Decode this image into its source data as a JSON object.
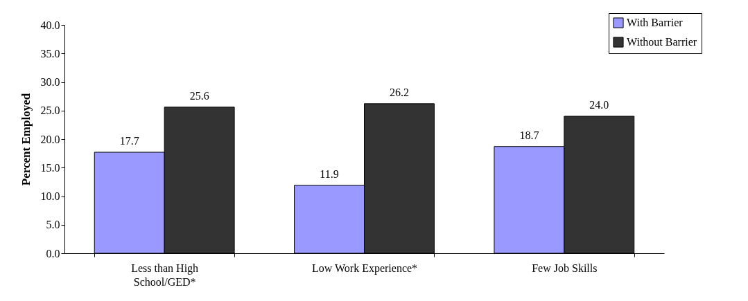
{
  "chart_data": {
    "type": "bar",
    "ylabel": "Percent Employed",
    "categories": [
      "Less than High School/GED*",
      "Low Work Experience*",
      "Few Job Skills"
    ],
    "series": [
      {
        "name": "With Barrier",
        "color": "#9999ff",
        "values": [
          17.7,
          11.9,
          18.7
        ],
        "value_labels": [
          "17.7",
          "11.9",
          "18.7"
        ]
      },
      {
        "name": "Without Barrier",
        "color": "#333333",
        "values": [
          25.6,
          26.2,
          24.0
        ],
        "value_labels": [
          "25.6",
          "26.2",
          "24.0"
        ]
      }
    ],
    "ylim": [
      0,
      40
    ],
    "yticks": [
      {
        "value": 0,
        "label": "0.0"
      },
      {
        "value": 5,
        "label": "5.0"
      },
      {
        "value": 10,
        "label": "10.0"
      },
      {
        "value": 15,
        "label": "15.0"
      },
      {
        "value": 20,
        "label": "20.0"
      },
      {
        "value": 25,
        "label": "25.0"
      },
      {
        "value": 30,
        "label": "30.0"
      },
      {
        "value": 35,
        "label": "35.0"
      },
      {
        "value": 40,
        "label": "40.0"
      }
    ],
    "grid": false,
    "legend": "top right"
  }
}
